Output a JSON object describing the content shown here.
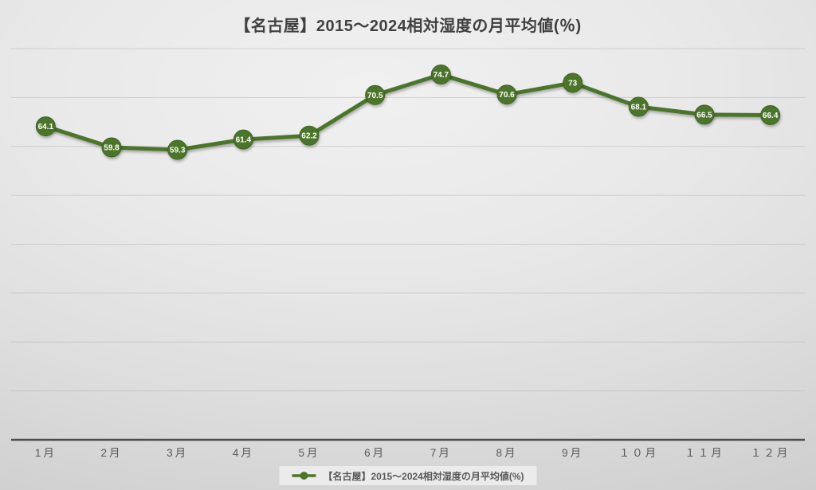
{
  "title": "【名古屋】2015～2024相対湿度の月平均値(％)",
  "legend": {
    "label": "【名古屋】2015～2024相対湿度の月平均値(%)"
  },
  "colors": {
    "series_green": "#4c752b",
    "series_green_dark": "#3f6323",
    "title_gray": "#404040",
    "axis_gray": "#4d4d4d",
    "label_gray": "#595959",
    "gridline_gray": "#b5b5b5",
    "legend_bg": "#ebebeb",
    "data_label_white": "#ffffff"
  },
  "chart_data": {
    "type": "line",
    "title": "【名古屋】2015～2024相対湿度の月平均値(％)",
    "categories": [
      "1月",
      "2月",
      "3月",
      "4月",
      "5月",
      "6月",
      "7月",
      "8月",
      "9月",
      "１０月",
      "１１月",
      "１２月"
    ],
    "series": [
      {
        "name": "【名古屋】2015～2024相対湿度の月平均値(%)",
        "values": [
          64.1,
          59.8,
          59.3,
          61.4,
          62.2,
          70.5,
          74.7,
          70.6,
          73,
          68.1,
          66.5,
          66.4
        ]
      }
    ],
    "data_labels": [
      "64.1",
      "59.8",
      "59.3",
      "61.4",
      "62.2",
      "70.5",
      "74.7",
      "70.6",
      "73",
      "68.1",
      "66.5",
      "66.4"
    ],
    "xlabel": "",
    "ylabel": "",
    "ylim": [
      0,
      80
    ],
    "gridline_step": 10,
    "grid": true,
    "y_axis_labels_visible": false,
    "legend_position": "bottom"
  }
}
